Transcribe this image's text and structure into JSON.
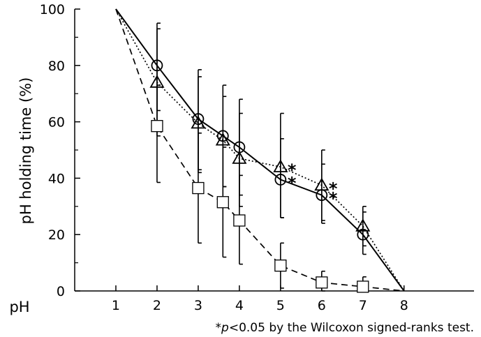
{
  "chart_data": {
    "type": "line",
    "xlabel": "pH",
    "ylabel": "pH holding time (%)",
    "xlim": [
      0,
      9.7
    ],
    "ylim": [
      0,
      100
    ],
    "xticks": [
      1,
      2,
      3,
      4,
      5,
      6,
      7,
      8
    ],
    "xtick_labels": [
      "1",
      "2",
      "3",
      "4",
      "5",
      "6",
      "7",
      "8"
    ],
    "yticks": [
      0,
      20,
      40,
      60,
      80,
      100
    ],
    "ytick_labels": [
      "0",
      "20",
      "40",
      "60",
      "80",
      "100"
    ],
    "grid": false,
    "legend": "none",
    "footnote_prefix": "*",
    "footnote_italic": "p",
    "footnote_rest": "<0.05 by the Wilcoxon signed-ranks test.",
    "series": [
      {
        "marker": "circle",
        "line_style": "solid",
        "points": [
          {
            "x": 1,
            "y": 100
          },
          {
            "x": 2,
            "y": 80,
            "err_upper": 95,
            "err_lower": 64
          },
          {
            "x": 3,
            "y": 61,
            "err_upper": 78.5,
            "err_lower": 42
          },
          {
            "x": 3.6,
            "y": 55,
            "err_upper": 73,
            "err_lower": 37
          },
          {
            "x": 4,
            "y": 51,
            "err_upper": 68,
            "err_lower": 34
          },
          {
            "x": 5,
            "y": 39.5,
            "err_upper": 54,
            "err_lower": 26,
            "significant": true
          },
          {
            "x": 6,
            "y": 34,
            "err_upper": 45,
            "err_lower": 24,
            "significant": true
          },
          {
            "x": 7,
            "y": 20,
            "err_upper": 28,
            "err_lower": 13
          },
          {
            "x": 8,
            "y": 0
          }
        ]
      },
      {
        "marker": "triangle",
        "line_style": "dotted",
        "points": [
          {
            "x": 1,
            "y": 100
          },
          {
            "x": 2,
            "y": 74,
            "err_upper": 93,
            "err_lower": 55
          },
          {
            "x": 3,
            "y": 59.5,
            "err_upper": 76,
            "err_lower": 43
          },
          {
            "x": 3.6,
            "y": 53.5,
            "err_upper": 69,
            "err_lower": 37
          },
          {
            "x": 4,
            "y": 47,
            "err_upper": 63,
            "err_lower": 30
          },
          {
            "x": 5,
            "y": 44,
            "err_upper": 63,
            "err_lower": 26,
            "significant": true
          },
          {
            "x": 6,
            "y": 37.5,
            "err_upper": 50,
            "err_lower": 25,
            "significant": true
          },
          {
            "x": 7,
            "y": 23,
            "err_upper": 30,
            "err_lower": 16
          },
          {
            "x": 8,
            "y": 0
          }
        ]
      },
      {
        "marker": "square",
        "line_style": "dashed",
        "points": [
          {
            "x": 1,
            "y": 100
          },
          {
            "x": 2,
            "y": 58.5,
            "err_upper": 73,
            "err_lower": 38.5
          },
          {
            "x": 3,
            "y": 36.5,
            "err_upper": 56,
            "err_lower": 17
          },
          {
            "x": 3.6,
            "y": 31.5,
            "err_upper": 51,
            "err_lower": 12
          },
          {
            "x": 4,
            "y": 25,
            "err_upper": 41,
            "err_lower": 9.5
          },
          {
            "x": 5,
            "y": 9,
            "err_upper": 17,
            "err_lower": 1
          },
          {
            "x": 6,
            "y": 3,
            "err_upper": 7,
            "err_lower": 0
          },
          {
            "x": 7,
            "y": 1.5,
            "err_upper": 5,
            "err_lower": 0
          },
          {
            "x": 8,
            "y": 0
          }
        ]
      }
    ]
  }
}
